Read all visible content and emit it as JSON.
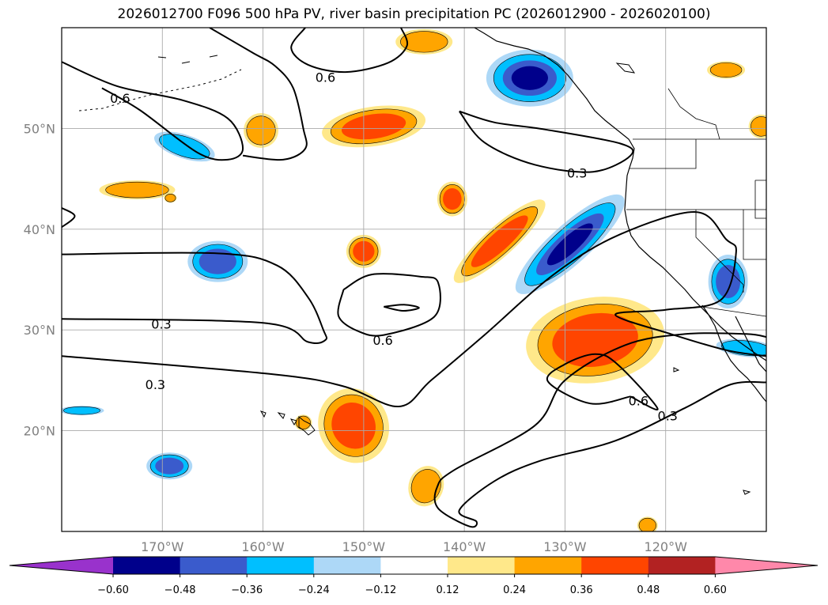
{
  "title": "2026012700 F096 500 hPa PV, river basin precipitation PC (2026012900 - 2026020100)",
  "lat_ticks": [
    {
      "label": "50°N",
      "lat": 50
    },
    {
      "label": "40°N",
      "lat": 40
    },
    {
      "label": "30°N",
      "lat": 30
    },
    {
      "label": "20°N",
      "lat": 20
    }
  ],
  "lon_ticks": [
    {
      "label": "170°W",
      "lon": -170
    },
    {
      "label": "160°W",
      "lon": -160
    },
    {
      "label": "150°W",
      "lon": -150
    },
    {
      "label": "140°W",
      "lon": -140
    },
    {
      "label": "130°W",
      "lon": -130
    },
    {
      "label": "120°W",
      "lon": -120
    }
  ],
  "extent": {
    "lon_min": -180,
    "lon_max": -110,
    "lat_min": 10,
    "lat_max": 60
  },
  "contour_labels": [
    {
      "text": "0.6",
      "lon": -153.8,
      "lat": 55.1
    },
    {
      "text": "0.6",
      "lon": -174.2,
      "lat": 53.0
    },
    {
      "text": "0.3",
      "lon": -128.8,
      "lat": 45.6
    },
    {
      "text": "0.3",
      "lon": -170.1,
      "lat": 30.6
    },
    {
      "text": "0.6",
      "lon": -148.1,
      "lat": 29.0
    },
    {
      "text": "0.3",
      "lon": -170.7,
      "lat": 24.6
    },
    {
      "text": "0.6",
      "lon": -122.7,
      "lat": 23.0
    },
    {
      "text": "0.3",
      "lon": -119.8,
      "lat": 21.5
    }
  ],
  "colorbar": {
    "ticks": [
      "−0.60",
      "−0.48",
      "−0.36",
      "−0.24",
      "−0.12",
      "0.12",
      "0.24",
      "0.36",
      "0.48",
      "0.60"
    ],
    "colors": [
      "#9932cc",
      "#00008b",
      "#3a5bcc",
      "#00bfff",
      "#add8f7",
      "#ffffff",
      "#ffe88a",
      "#ffa500",
      "#ff4500",
      "#b22222",
      "#ff88aa"
    ]
  },
  "anomalies": [
    {
      "lon": -133.5,
      "lat": 55.0,
      "rx": 55,
      "ry": 36,
      "rot": 0,
      "sign": "neg",
      "levels": 4
    },
    {
      "lon": -129.5,
      "lat": 38.5,
      "rx": 90,
      "ry": 25,
      "rot": -42,
      "sign": "neg",
      "levels": 4
    },
    {
      "lon": -164.5,
      "lat": 36.8,
      "rx": 38,
      "ry": 26,
      "rot": 0,
      "sign": "neg",
      "levels": 3
    },
    {
      "lon": -113.8,
      "lat": 34.8,
      "rx": 25,
      "ry": 34,
      "rot": 0,
      "sign": "neg",
      "levels": 3
    },
    {
      "lon": -167.8,
      "lat": 48.2,
      "rx": 40,
      "ry": 15,
      "rot": 18,
      "sign": "neg",
      "levels": 2
    },
    {
      "lon": -169.3,
      "lat": 16.5,
      "rx": 29,
      "ry": 17,
      "rot": 0,
      "sign": "neg",
      "levels": 3
    },
    {
      "lon": -112.0,
      "lat": 28.2,
      "rx": 38,
      "ry": 11,
      "rot": 6,
      "sign": "neg",
      "levels": 2
    },
    {
      "lon": -178.0,
      "lat": 22.0,
      "rx": 28,
      "ry": 6,
      "rot": 0,
      "sign": "neg",
      "levels": 2
    },
    {
      "lon": -127.0,
      "lat": 29.0,
      "rx": 88,
      "ry": 54,
      "rot": -8,
      "sign": "pos",
      "levels": 3
    },
    {
      "lon": -151.0,
      "lat": 20.5,
      "rx": 44,
      "ry": 48,
      "rot": -28,
      "sign": "pos",
      "levels": 3
    },
    {
      "lon": -149.0,
      "lat": 50.2,
      "rx": 66,
      "ry": 25,
      "rot": -8,
      "sign": "pos",
      "levels": 3
    },
    {
      "lon": -136.5,
      "lat": 38.8,
      "rx": 76,
      "ry": 19,
      "rot": -42,
      "sign": "pos",
      "levels": 3
    },
    {
      "lon": -150.0,
      "lat": 37.8,
      "rx": 22,
      "ry": 21,
      "rot": 0,
      "sign": "pos",
      "levels": 3
    },
    {
      "lon": -141.2,
      "lat": 43.0,
      "rx": 19,
      "ry": 22,
      "rot": 0,
      "sign": "pos",
      "levels": 3
    },
    {
      "lon": -143.8,
      "lat": 14.5,
      "rx": 22,
      "ry": 26,
      "rot": 20,
      "sign": "pos",
      "levels": 2
    },
    {
      "lon": -160.2,
      "lat": 49.8,
      "rx": 22,
      "ry": 22,
      "rot": 0,
      "sign": "pos",
      "levels": 2
    },
    {
      "lon": -172.5,
      "lat": 43.9,
      "rx": 48,
      "ry": 12,
      "rot": 0,
      "sign": "pos",
      "levels": 2
    },
    {
      "lon": -144.0,
      "lat": 58.6,
      "rx": 36,
      "ry": 16,
      "rot": 0,
      "sign": "pos",
      "levels": 2
    },
    {
      "lon": -114.0,
      "lat": 55.8,
      "rx": 24,
      "ry": 11,
      "rot": 0,
      "sign": "pos",
      "levels": 2
    },
    {
      "lon": -110.5,
      "lat": 50.2,
      "rx": 16,
      "ry": 15,
      "rot": 0,
      "sign": "pos",
      "levels": 2
    },
    {
      "lon": -169.2,
      "lat": 43.1,
      "rx": 8,
      "ry": 6,
      "rot": 0,
      "sign": "pos",
      "levels": 2
    },
    {
      "lon": -156.0,
      "lat": 20.8,
      "rx": 11,
      "ry": 10,
      "rot": 0,
      "sign": "pos",
      "levels": 2
    },
    {
      "lon": -121.8,
      "lat": 10.6,
      "rx": 13,
      "ry": 11,
      "rot": 0,
      "sign": "pos",
      "levels": 2
    }
  ],
  "pv_contours": [
    [
      [
        -155.8,
        60.0
      ],
      [
        -157.2,
        58.0
      ],
      [
        -155.5,
        56.3
      ],
      [
        -151.8,
        55.6
      ],
      [
        -147.6,
        56.5
      ],
      [
        -145.7,
        58.2
      ],
      [
        -146.3,
        60.0
      ]
    ],
    [
      [
        -180.0,
        56.6
      ],
      [
        -174.5,
        54.2
      ],
      [
        -168.0,
        52.8
      ],
      [
        -163.5,
        51.0
      ],
      [
        -162.0,
        48.0
      ],
      [
        -163.5,
        46.9
      ],
      [
        -166.5,
        47.6
      ],
      [
        -172.2,
        51.8
      ],
      [
        -176.0,
        54.0
      ]
    ],
    [
      [
        -165.3,
        60.0
      ],
      [
        -161.0,
        57.5
      ],
      [
        -158.8,
        56.2
      ],
      [
        -157.0,
        54.0
      ],
      [
        -156.0,
        50.0
      ],
      [
        -155.8,
        48.0
      ],
      [
        -158.0,
        46.9
      ],
      [
        -162.0,
        47.3
      ]
    ],
    [
      [
        -180.0,
        42.1
      ],
      [
        -178.7,
        41.3
      ],
      [
        -180.0,
        40.2
      ]
    ],
    [
      [
        -140.5,
        51.7
      ],
      [
        -137.0,
        50.6
      ],
      [
        -132.0,
        49.9
      ],
      [
        -124.5,
        48.5
      ],
      [
        -123.5,
        47.3
      ],
      [
        -127.2,
        45.7
      ],
      [
        -133.0,
        46.4
      ],
      [
        -138.0,
        48.6
      ],
      [
        -140.5,
        51.7
      ]
    ],
    [
      [
        -180.0,
        37.5
      ],
      [
        -164.5,
        37.6
      ],
      [
        -158.6,
        36.4
      ],
      [
        -155.5,
        33.2
      ],
      [
        -154.0,
        30.0
      ],
      [
        -153.8,
        29.0
      ],
      [
        -155.5,
        28.8
      ],
      [
        -160.0,
        30.7
      ],
      [
        -180.0,
        31.1
      ]
    ],
    [
      [
        -152.0,
        34.0
      ],
      [
        -149.2,
        35.5
      ],
      [
        -144.4,
        35.3
      ],
      [
        -142.6,
        34.7
      ],
      [
        -143.0,
        31.3
      ],
      [
        -148.0,
        29.5
      ],
      [
        -150.6,
        29.9
      ],
      [
        -152.5,
        31.4
      ],
      [
        -152.0,
        34.0
      ]
    ],
    [
      [
        -148.0,
        32.3
      ],
      [
        -146.1,
        31.9
      ],
      [
        -144.5,
        32.2
      ],
      [
        -146.0,
        32.5
      ],
      [
        -148.0,
        32.3
      ]
    ],
    [
      [
        -180.0,
        27.4
      ],
      [
        -159.0,
        25.6
      ],
      [
        -152.0,
        24.4
      ],
      [
        -146.5,
        22.4
      ],
      [
        -143.3,
        25.0
      ],
      [
        -138.0,
        29.5
      ],
      [
        -131.0,
        35.6
      ],
      [
        -124.5,
        39.5
      ],
      [
        -117.0,
        41.7
      ],
      [
        -114.0,
        39.0
      ],
      [
        -113.0,
        37.7
      ],
      [
        -114.5,
        33.0
      ],
      [
        -120.0,
        32.0
      ],
      [
        -125.0,
        31.5
      ],
      [
        -119.5,
        29.6
      ],
      [
        -114.0,
        28.0
      ],
      [
        -110.0,
        27.4
      ]
    ],
    [
      [
        -123.5,
        23.4
      ],
      [
        -120.8,
        22.2
      ],
      [
        -124.8,
        26.6
      ],
      [
        -127.0,
        27.6
      ],
      [
        -130.0,
        26.6
      ],
      [
        -131.7,
        24.9
      ],
      [
        -127.5,
        22.7
      ],
      [
        -123.5,
        23.4
      ]
    ],
    [
      [
        -110.0,
        24.8
      ],
      [
        -113.5,
        24.6
      ],
      [
        -118.0,
        22.3
      ],
      [
        -125.0,
        19.0
      ],
      [
        -132.5,
        17.0
      ],
      [
        -137.0,
        15.0
      ],
      [
        -140.5,
        12.1
      ],
      [
        -138.8,
        11.0
      ],
      [
        -139.5,
        10.5
      ],
      [
        -142.6,
        12.3
      ],
      [
        -142.7,
        14.4
      ],
      [
        -141.0,
        16.1
      ],
      [
        -133.0,
        20.5
      ],
      [
        -130.0,
        25.0
      ],
      [
        -124.0,
        28.5
      ],
      [
        -118.0,
        29.6
      ],
      [
        -112.0,
        29.6
      ],
      [
        -110.0,
        29.3
      ]
    ]
  ]
}
